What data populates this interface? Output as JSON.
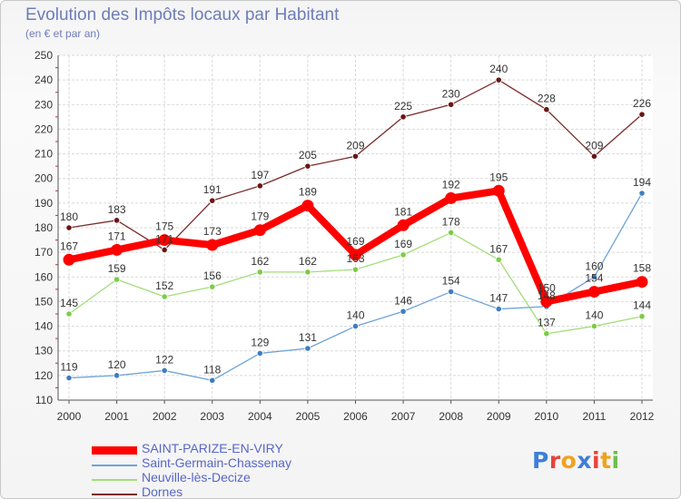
{
  "title": "Evolution des Impôts locaux par Habitant",
  "subtitle": "(en € et par an)",
  "logo_text": "Proxiti",
  "chart_data": {
    "type": "line",
    "title": "Evolution des Impôts locaux par Habitant",
    "subtitle": "(en € et par an)",
    "x": [
      2000,
      2001,
      2002,
      2003,
      2004,
      2005,
      2006,
      2007,
      2008,
      2009,
      2010,
      2011,
      2012
    ],
    "ylim": [
      110,
      250
    ],
    "yticks": [
      110,
      120,
      130,
      140,
      150,
      160,
      170,
      180,
      190,
      200,
      210,
      220,
      230,
      240,
      250
    ],
    "grid": true,
    "legend_position": "bottom-left",
    "series": [
      {
        "name": "SAINT-PARIZE-EN-VIRY",
        "color": "#ff0000",
        "marker_color": "#ff0000",
        "emphasis": true,
        "values": [
          167,
          171,
          175,
          173,
          179,
          189,
          169,
          181,
          192,
          195,
          150,
          154,
          158
        ]
      },
      {
        "name": "Saint-Germain-Chassenay",
        "color": "#6fa3d8",
        "marker_color": "#3d7fc0",
        "emphasis": false,
        "values": [
          119,
          120,
          122,
          118,
          129,
          131,
          140,
          146,
          154,
          147,
          148,
          160,
          194
        ]
      },
      {
        "name": "Neuville-lès-Decize",
        "color": "#a3dd7a",
        "marker_color": "#7ccc45",
        "emphasis": false,
        "values": [
          145,
          159,
          152,
          156,
          162,
          162,
          163,
          169,
          178,
          167,
          137,
          140,
          144
        ]
      },
      {
        "name": "Dornes",
        "color": "#7a2a2a",
        "marker_color": "#6b1515",
        "emphasis": false,
        "values": [
          180,
          183,
          171,
          191,
          197,
          205,
          209,
          225,
          230,
          240,
          228,
          209,
          226
        ]
      }
    ]
  }
}
